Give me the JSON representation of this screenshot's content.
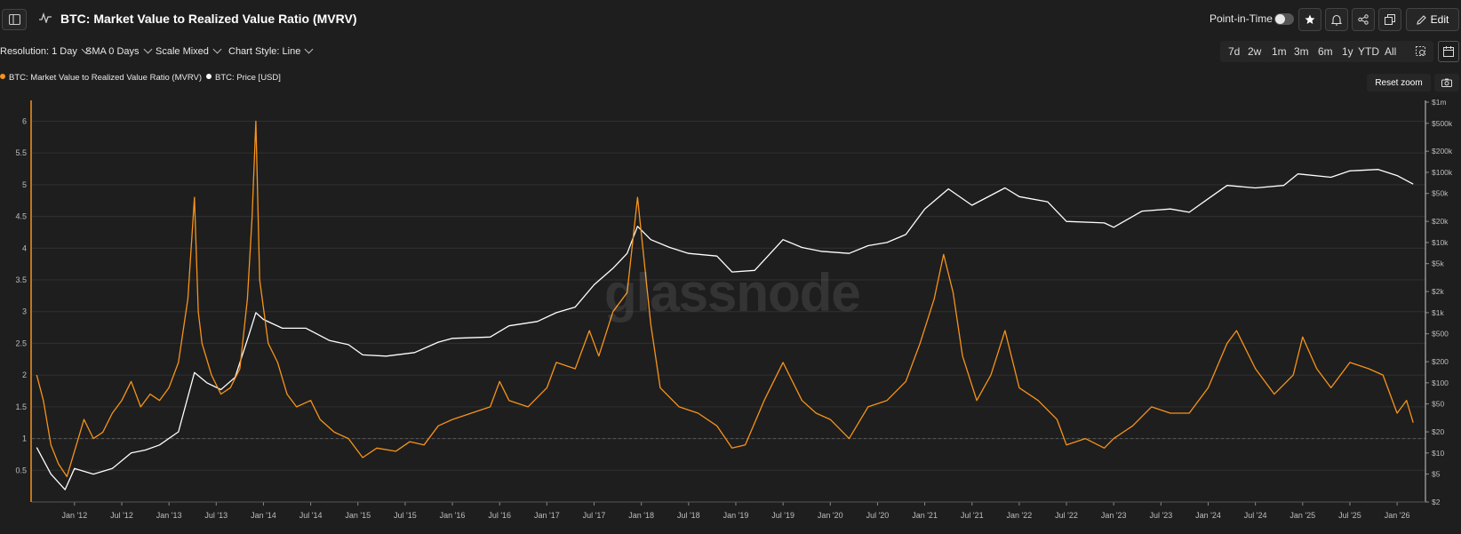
{
  "header": {
    "title": "BTC: Market Value to Realized Value Ratio (MVRV)",
    "point_in_time_label": "Point-in-Time",
    "edit_label": "Edit"
  },
  "toolbar": {
    "resolution": "Resolution: 1 Day",
    "sma": "SMA 0 Days",
    "scale": "Scale Mixed",
    "style": "Chart Style: Line"
  },
  "ranges": [
    "7d",
    "2w",
    "1m",
    "3m",
    "6m",
    "1y",
    "YTD",
    "All"
  ],
  "reset_zoom": "Reset zoom",
  "watermark": "glassnode",
  "colors": {
    "mvrv": "#f7931a",
    "price": "#ffffff",
    "background": "#1e1e1e"
  },
  "icons": [
    "sidebar-toggle-icon",
    "pulse-icon",
    "star-icon",
    "bell-icon",
    "share-icon",
    "copy-icon",
    "edit-icon",
    "zoom-select-icon",
    "calendar-icon",
    "camera-icon"
  ],
  "chart_data": {
    "type": "line",
    "x_tick_labels": [
      "Jan '12",
      "Jul '12",
      "Jan '13",
      "Jul '13",
      "Jan '14",
      "Jul '14",
      "Jan '15",
      "Jul '15",
      "Jan '16",
      "Jul '16",
      "Jan '17",
      "Jul '17",
      "Jan '18",
      "Jul '18",
      "Jan '19",
      "Jul '19",
      "Jan '20",
      "Jul '20",
      "Jan '21",
      "Jul '21",
      "Jan '22",
      "Jul '22",
      "Jan '23",
      "Jul '23",
      "Jan '24",
      "Jul '24",
      "Jan '25",
      "Jul '25",
      "Jan '26"
    ],
    "x_range": [
      2011.55,
      2026.3
    ],
    "y_left": {
      "ticks": [
        "0.5",
        "1",
        "1.5",
        "2",
        "2.5",
        "3",
        "3.5",
        "4",
        "4.5",
        "5",
        "5.5",
        "6"
      ],
      "range": [
        0.0,
        6.3
      ],
      "scale": "linear"
    },
    "y_right": {
      "ticks": [
        "$2",
        "$5",
        "$10",
        "$20",
        "$50",
        "$100",
        "$200",
        "$500",
        "$1k",
        "$2k",
        "$5k",
        "$10k",
        "$20k",
        "$50k",
        "$100k",
        "$200k",
        "$500k",
        "$1m"
      ],
      "tick_values": [
        2,
        5,
        10,
        20,
        50,
        100,
        200,
        500,
        1000,
        2000,
        5000,
        10000,
        20000,
        50000,
        100000,
        200000,
        500000,
        1000000
      ],
      "range": [
        2,
        1000000
      ],
      "scale": "log"
    },
    "grid": true,
    "legend_position": "top-left",
    "series": [
      {
        "name": "BTC: Market Value to Realized Value Ratio (MVRV)",
        "axis": "left",
        "x": [
          2011.6,
          2011.67,
          2011.75,
          2011.83,
          2011.92,
          2012.0,
          2012.1,
          2012.2,
          2012.3,
          2012.4,
          2012.5,
          2012.6,
          2012.7,
          2012.8,
          2012.9,
          2013.0,
          2013.1,
          2013.2,
          2013.27,
          2013.31,
          2013.35,
          2013.45,
          2013.55,
          2013.65,
          2013.75,
          2013.83,
          2013.88,
          2013.92,
          2013.96,
          2014.05,
          2014.15,
          2014.25,
          2014.35,
          2014.5,
          2014.6,
          2014.75,
          2014.9,
          2015.05,
          2015.2,
          2015.4,
          2015.55,
          2015.7,
          2015.85,
          2016.0,
          2016.2,
          2016.4,
          2016.5,
          2016.6,
          2016.8,
          2017.0,
          2017.1,
          2017.3,
          2017.45,
          2017.55,
          2017.7,
          2017.85,
          2017.96,
          2018.1,
          2018.2,
          2018.4,
          2018.6,
          2018.8,
          2018.96,
          2019.1,
          2019.3,
          2019.5,
          2019.7,
          2019.85,
          2020.0,
          2020.2,
          2020.4,
          2020.6,
          2020.8,
          2020.95,
          2021.1,
          2021.2,
          2021.3,
          2021.4,
          2021.55,
          2021.7,
          2021.85,
          2022.0,
          2022.2,
          2022.4,
          2022.5,
          2022.7,
          2022.9,
          2023.0,
          2023.2,
          2023.4,
          2023.6,
          2023.8,
          2024.0,
          2024.2,
          2024.3,
          2024.5,
          2024.7,
          2024.9,
          2025.0,
          2025.15,
          2025.3,
          2025.5,
          2025.7,
          2025.85,
          2026.0,
          2026.1,
          2026.17
        ],
        "values": [
          2.0,
          1.6,
          0.9,
          0.6,
          0.4,
          0.8,
          1.3,
          1.0,
          1.1,
          1.4,
          1.6,
          1.9,
          1.5,
          1.7,
          1.6,
          1.8,
          2.2,
          3.2,
          4.8,
          3.0,
          2.5,
          2.0,
          1.7,
          1.8,
          2.1,
          3.2,
          4.5,
          6.0,
          3.5,
          2.5,
          2.2,
          1.7,
          1.5,
          1.6,
          1.3,
          1.1,
          1.0,
          0.7,
          0.85,
          0.8,
          0.95,
          0.9,
          1.2,
          1.3,
          1.4,
          1.5,
          1.9,
          1.6,
          1.5,
          1.8,
          2.2,
          2.1,
          2.7,
          2.3,
          3.0,
          3.3,
          4.8,
          2.8,
          1.8,
          1.5,
          1.4,
          1.2,
          0.85,
          0.9,
          1.6,
          2.2,
          1.6,
          1.4,
          1.3,
          1.0,
          1.5,
          1.6,
          1.9,
          2.5,
          3.2,
          3.9,
          3.3,
          2.3,
          1.6,
          2.0,
          2.7,
          1.8,
          1.6,
          1.3,
          0.9,
          1.0,
          0.85,
          1.0,
          1.2,
          1.5,
          1.4,
          1.4,
          1.8,
          2.5,
          2.7,
          2.1,
          1.7,
          2.0,
          2.6,
          2.1,
          1.8,
          2.2,
          2.1,
          2.0,
          1.4,
          1.6,
          1.25
        ]
      },
      {
        "name": "BTC: Price [USD]",
        "axis": "right",
        "x": [
          2011.6,
          2011.75,
          2011.9,
          2012.0,
          2012.2,
          2012.4,
          2012.6,
          2012.75,
          2012.9,
          2013.1,
          2013.27,
          2013.4,
          2013.55,
          2013.7,
          2013.85,
          2013.92,
          2014.0,
          2014.2,
          2014.45,
          2014.7,
          2014.9,
          2015.05,
          2015.3,
          2015.6,
          2015.85,
          2016.0,
          2016.4,
          2016.6,
          2016.9,
          2017.1,
          2017.3,
          2017.5,
          2017.7,
          2017.85,
          2017.96,
          2018.1,
          2018.3,
          2018.5,
          2018.8,
          2018.96,
          2019.2,
          2019.5,
          2019.7,
          2019.9,
          2020.2,
          2020.4,
          2020.6,
          2020.8,
          2021.0,
          2021.25,
          2021.5,
          2021.85,
          2022.0,
          2022.3,
          2022.5,
          2022.9,
          2023.0,
          2023.3,
          2023.6,
          2023.8,
          2024.0,
          2024.2,
          2024.5,
          2024.8,
          2024.95,
          2025.3,
          2025.5,
          2025.8,
          2026.0,
          2026.17
        ],
        "values": [
          12,
          5,
          3,
          6,
          5,
          6,
          10,
          11,
          13,
          20,
          140,
          100,
          80,
          120,
          500,
          1000,
          800,
          600,
          600,
          400,
          350,
          250,
          240,
          270,
          380,
          430,
          450,
          650,
          750,
          1000,
          1200,
          2500,
          4300,
          7000,
          17000,
          11000,
          8500,
          7000,
          6400,
          3800,
          4000,
          11000,
          8500,
          7500,
          7000,
          9000,
          10000,
          13000,
          30000,
          58000,
          34000,
          60000,
          45000,
          38000,
          20000,
          19000,
          16500,
          28000,
          30000,
          27000,
          42000,
          65000,
          60000,
          65000,
          95000,
          85000,
          105000,
          110000,
          90000,
          68000
        ]
      }
    ]
  }
}
